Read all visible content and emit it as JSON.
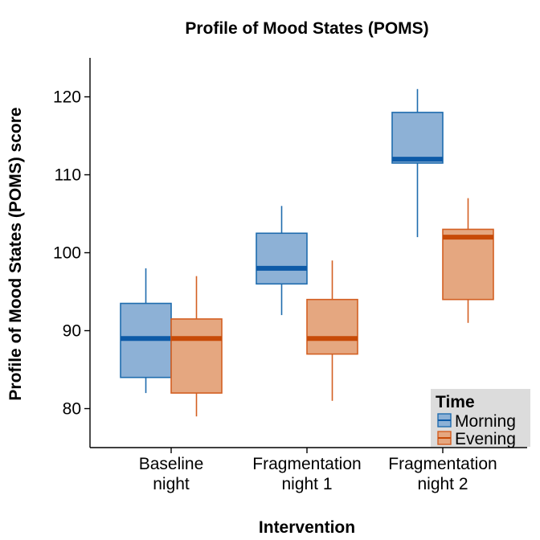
{
  "chart_data": {
    "type": "boxplot",
    "title": "Profile of Mood States (POMS)",
    "xlabel": "Intervention",
    "ylabel": "Profile of Mood States (POMS) score",
    "ylim": [
      75,
      125
    ],
    "yticks": [
      80,
      90,
      100,
      110,
      120
    ],
    "categories": [
      [
        "Baseline",
        "night"
      ],
      [
        "Fragmentation",
        "night 1"
      ],
      [
        "Fragmentation",
        "night 2"
      ]
    ],
    "legend": {
      "title": "Time",
      "position": "bottom-right"
    },
    "series": [
      {
        "name": "Morning",
        "color": "#1f6cae",
        "fill": "#8db1d6",
        "median_color": "#0d5aa7",
        "boxes": [
          {
            "whisker_low": 82,
            "q1": 84,
            "median": 89,
            "q3": 93.5,
            "whisker_high": 98
          },
          {
            "whisker_low": 92,
            "q1": 96,
            "median": 98,
            "q3": 102.5,
            "whisker_high": 106
          },
          {
            "whisker_low": 102,
            "q1": 111.5,
            "median": 112,
            "q3": 118,
            "whisker_high": 121
          }
        ]
      },
      {
        "name": "Evening",
        "color": "#d35f22",
        "fill": "#e5a780",
        "median_color": "#c74a07",
        "boxes": [
          {
            "whisker_low": 79,
            "q1": 82,
            "median": 89,
            "q3": 91.5,
            "whisker_high": 97
          },
          {
            "whisker_low": 81,
            "q1": 87,
            "median": 89,
            "q3": 94,
            "whisker_high": 99
          },
          {
            "whisker_low": 91,
            "q1": 94,
            "median": 102,
            "q3": 103,
            "whisker_high": 107
          }
        ]
      }
    ],
    "grid": false
  }
}
